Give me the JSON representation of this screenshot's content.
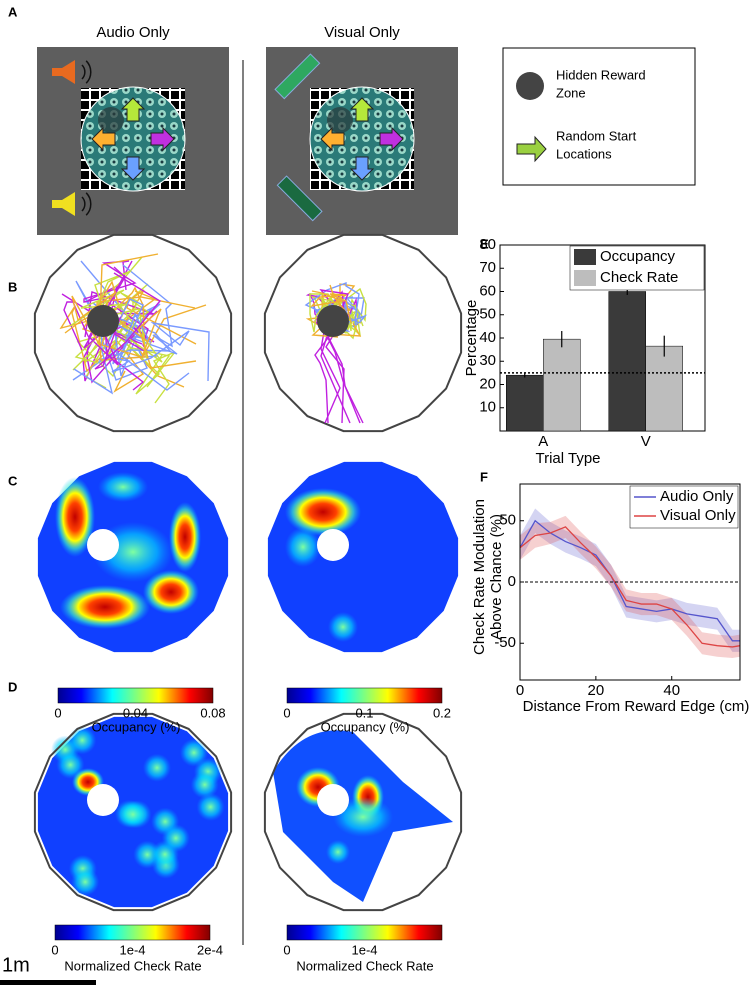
{
  "panel_labels": [
    "A",
    "B",
    "C",
    "D",
    "E",
    "F"
  ],
  "panel_a": {
    "audio_title": "Audio Only",
    "visual_title": "Visual Only",
    "legend": [
      [
        "Hidden Reward",
        "Zone"
      ],
      [
        "Random Start",
        "Locations"
      ]
    ]
  },
  "colorbars": [
    {
      "ticks": [
        "0",
        "0.04",
        "0.08"
      ],
      "label": "Occupancy (%)"
    },
    {
      "ticks": [
        "0",
        "0.1",
        "0.2"
      ],
      "label": "Occupancy (%)"
    },
    {
      "ticks": [
        "0",
        "1e-4",
        "2e-4"
      ],
      "label": "Normalized Check Rate"
    },
    {
      "ticks": [
        "0",
        "1e-4"
      ],
      "label": "Normalized Check Rate"
    }
  ],
  "scale_bar": "1m",
  "chart_data": [
    {
      "type": "bar",
      "categories": [
        "A",
        "V"
      ],
      "xlabel": "Trial Type",
      "ylabel": "Percentage",
      "series": [
        {
          "name": "Occupancy",
          "color": "#3a3a3a",
          "values": [
            24,
            60
          ],
          "errors": [
            1,
            1.5
          ]
        },
        {
          "name": "Check Rate",
          "color": "#bdbdbd",
          "values": [
            39.5,
            36.5
          ],
          "errors": [
            3.5,
            4.5
          ]
        }
      ],
      "ylim": [
        0,
        80
      ],
      "yticks": [
        10,
        20,
        30,
        40,
        50,
        60,
        70,
        80
      ],
      "reference_line": 25,
      "legend": "upper-right"
    },
    {
      "type": "line",
      "xlabel": "Distance From Reward Edge (cm)",
      "ylabel": [
        "Check Rate Modulation",
        "Above Chance (%)"
      ],
      "x": [
        0,
        4,
        8,
        12,
        16,
        20,
        24,
        28,
        32,
        36,
        40,
        44,
        48,
        52,
        56,
        58
      ],
      "series": [
        {
          "name": "Audio Only",
          "color": "#5555cc",
          "values": [
            28,
            50,
            40,
            33,
            28,
            22,
            5,
            -20,
            -22,
            -24,
            -22,
            -26,
            -28,
            -30,
            -48,
            -48
          ],
          "errors": [
            10,
            10,
            9,
            9,
            9,
            9,
            9,
            9,
            9,
            9,
            9,
            9,
            9,
            9,
            9,
            9
          ]
        },
        {
          "name": "Visual Only",
          "color": "#dd4444",
          "values": [
            28,
            38,
            40,
            45,
            32,
            20,
            5,
            -15,
            -18,
            -18,
            -22,
            -35,
            -50,
            -52,
            -53,
            -52
          ],
          "errors": [
            10,
            10,
            9,
            9,
            9,
            9,
            9,
            9,
            9,
            9,
            9,
            9,
            9,
            9,
            9,
            9
          ]
        }
      ],
      "xlim": [
        0,
        58
      ],
      "xticks": [
        0,
        20,
        40
      ],
      "ylim": [
        -80,
        80
      ],
      "yticks": [
        -50,
        0,
        50
      ],
      "reference_line": 0,
      "legend": "upper-right"
    }
  ]
}
